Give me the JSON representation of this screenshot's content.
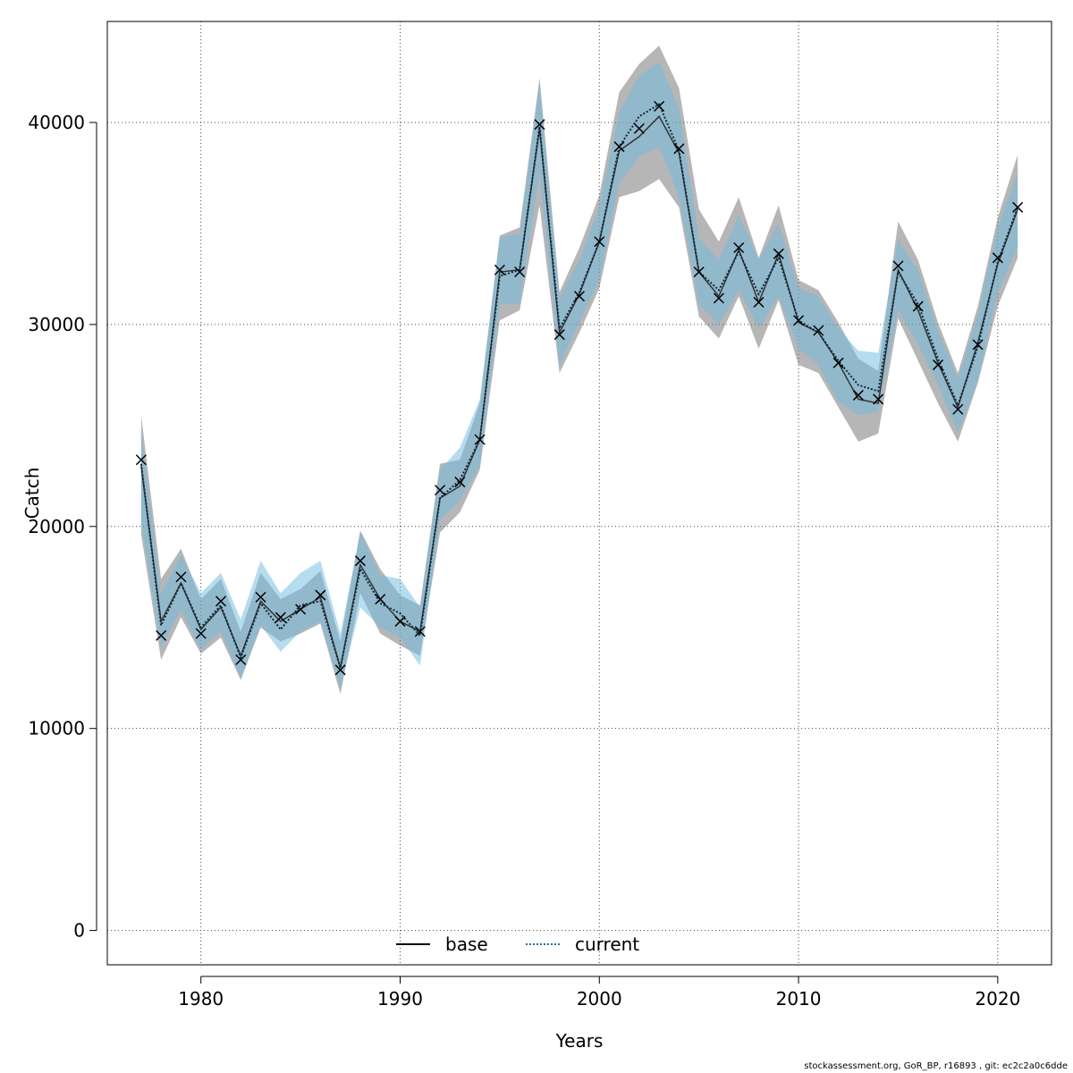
{
  "chart_data": {
    "type": "line",
    "xlabel": "Years",
    "ylabel": "Catch",
    "xlim": [
      1975.3,
      2022.7
    ],
    "ylim": [
      -1700,
      45000
    ],
    "x_ticks": [
      1980,
      1990,
      2000,
      2010,
      2020
    ],
    "y_ticks": [
      0,
      10000,
      20000,
      30000,
      40000
    ],
    "grid": true,
    "legend_position": "bottom-center",
    "x": [
      1977,
      1978,
      1979,
      1980,
      1981,
      1982,
      1983,
      1984,
      1985,
      1986,
      1987,
      1988,
      1989,
      1990,
      1991,
      1992,
      1993,
      1994,
      1995,
      1996,
      1997,
      1998,
      1999,
      2000,
      2001,
      2002,
      2003,
      2004,
      2005,
      2006,
      2007,
      2008,
      2009,
      2010,
      2011,
      2012,
      2013,
      2014,
      2015,
      2016,
      2017,
      2018,
      2019,
      2020,
      2021
    ],
    "observed": [
      23300,
      14600,
      17500,
      14700,
      16300,
      13400,
      16500,
      15500,
      15900,
      16600,
      12900,
      18300,
      16400,
      15300,
      14800,
      21800,
      22200,
      24300,
      32700,
      32600,
      39900,
      29500,
      31400,
      34100,
      38800,
      39700,
      40800,
      38700,
      32600,
      31300,
      33800,
      31100,
      33500,
      30200,
      29700,
      28100,
      26500,
      26300,
      32900,
      30900,
      28000,
      25800,
      29000,
      33300,
      35800
    ],
    "series": [
      {
        "name": "base",
        "color": "#000000",
        "line": "solid",
        "values": [
          23000,
          15300,
          17200,
          14900,
          16000,
          13600,
          16300,
          15300,
          15900,
          16500,
          13000,
          18100,
          16400,
          15300,
          14800,
          21400,
          22000,
          24300,
          32600,
          32700,
          39700,
          29600,
          31500,
          34100,
          38600,
          39300,
          40300,
          38500,
          32600,
          31400,
          33700,
          31100,
          33500,
          30100,
          29600,
          28100,
          26300,
          26100,
          32700,
          30700,
          28100,
          25900,
          29100,
          33000,
          35700
        ],
        "lower": [
          19600,
          13400,
          15500,
          13700,
          14500,
          12400,
          15000,
          14300,
          14700,
          15200,
          11700,
          16700,
          14700,
          14100,
          13600,
          19700,
          20700,
          22800,
          30200,
          30700,
          35900,
          27600,
          29600,
          31800,
          36300,
          36600,
          37200,
          35800,
          30400,
          29300,
          31400,
          28800,
          31200,
          28000,
          27600,
          25900,
          24200,
          24600,
          30300,
          28200,
          26100,
          24200,
          27100,
          30900,
          33300
        ],
        "upper": [
          25500,
          17400,
          18900,
          16400,
          17400,
          14800,
          17700,
          16400,
          16900,
          17800,
          14300,
          19800,
          17900,
          16600,
          16100,
          23100,
          23300,
          26100,
          34400,
          34800,
          42200,
          31600,
          33800,
          36400,
          41500,
          42900,
          43800,
          41700,
          35700,
          34100,
          36300,
          33300,
          35900,
          32200,
          31700,
          30100,
          28300,
          27700,
          35100,
          33200,
          30100,
          27600,
          30900,
          35300,
          38400
        ]
      },
      {
        "name": "current",
        "color": "#1f6e9e",
        "line": "dotted",
        "values": [
          23100,
          15100,
          17200,
          15000,
          16100,
          13500,
          16200,
          14900,
          16100,
          16300,
          13000,
          17900,
          16200,
          15700,
          14600,
          21400,
          22300,
          24300,
          32400,
          32700,
          39800,
          29800,
          31600,
          34100,
          38800,
          40300,
          40900,
          38600,
          32600,
          31700,
          33600,
          31500,
          33300,
          30200,
          29600,
          28200,
          27000,
          26700,
          32600,
          31000,
          28300,
          26000,
          28900,
          33100,
          35800
        ],
        "lower": [
          20200,
          14000,
          15900,
          13900,
          14800,
          12500,
          15100,
          13800,
          14800,
          15300,
          12000,
          16000,
          15000,
          14500,
          13100,
          20300,
          21300,
          23000,
          31000,
          31000,
          37500,
          28000,
          30100,
          32200,
          37000,
          38300,
          38800,
          36300,
          31000,
          30000,
          31700,
          29800,
          31400,
          28800,
          28000,
          26200,
          25500,
          25700,
          30700,
          29000,
          27000,
          24600,
          27200,
          31600,
          33800
        ],
        "upper": [
          24700,
          16700,
          18600,
          16700,
          17700,
          15400,
          18300,
          16700,
          17700,
          18300,
          14700,
          19700,
          17600,
          17400,
          16000,
          22800,
          23900,
          26300,
          34300,
          34500,
          41900,
          31300,
          33200,
          35800,
          40500,
          42300,
          43000,
          40700,
          34300,
          33200,
          35400,
          33200,
          35000,
          31800,
          31400,
          29800,
          28700,
          28600,
          34200,
          32700,
          29700,
          27300,
          30500,
          34800,
          37500
        ]
      }
    ]
  },
  "footer": "stockassessment.org, GoR_BP, r16893 , git: ec2c2a0c6dde"
}
